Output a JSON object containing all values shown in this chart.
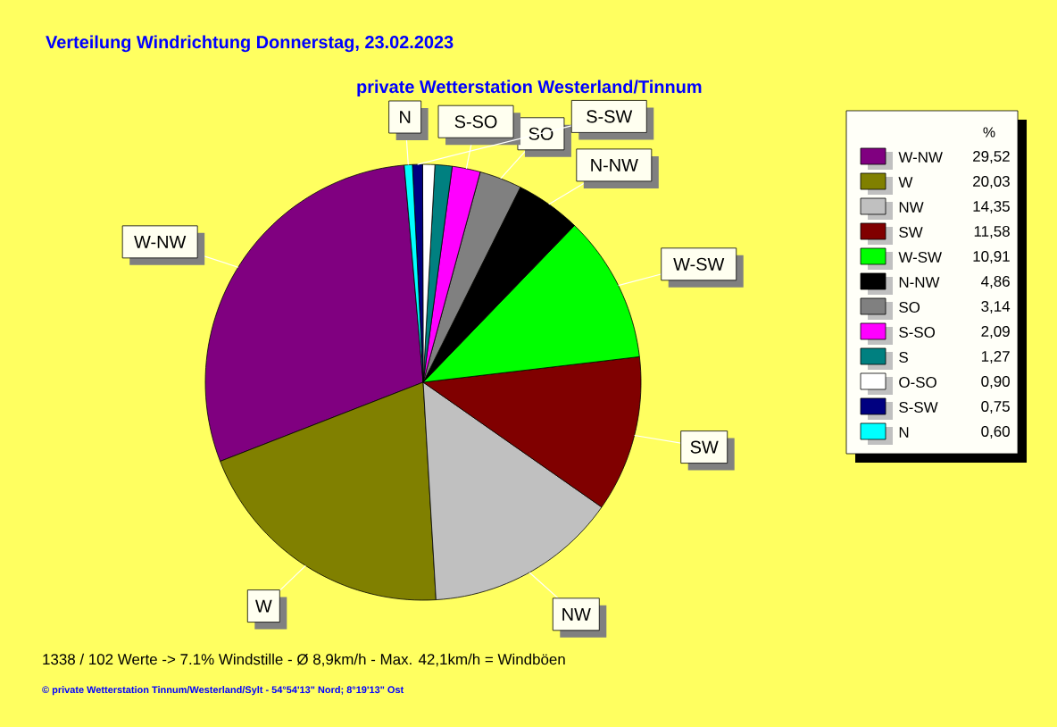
{
  "chart_data": {
    "type": "pie",
    "title": "Verteilung Windrichtung   Donnerstag, 23.02.2023",
    "subtitle": "private Wetterstation Westerland/Tinnum",
    "legend_title": "%",
    "legend": "right",
    "categories": [
      "W-NW",
      "W",
      "NW",
      "SW",
      "W-SW",
      "N-NW",
      "SO",
      "S-SO",
      "S",
      "O-SO",
      "S-SW",
      "N"
    ],
    "values": [
      29.52,
      20.03,
      14.35,
      11.58,
      10.91,
      4.86,
      3.14,
      2.09,
      1.27,
      0.9,
      0.75,
      0.6
    ],
    "value_labels": [
      "29,52",
      "20,03",
      "14,35",
      "11,58",
      "10,91",
      "4,86",
      "3,14",
      "2,09",
      "1,27",
      "0,90",
      "0,75",
      "0,60"
    ],
    "colors": [
      "#800080",
      "#808000",
      "#c0c0c0",
      "#800000",
      "#00ff00",
      "#000000",
      "#808080",
      "#ff00ff",
      "#008080",
      "#ffffff",
      "#000080",
      "#00ffff"
    ],
    "annotations": [
      {
        "text": "W-NW",
        "x": "W-NW"
      },
      {
        "text": "W",
        "x": "W"
      },
      {
        "text": "NW",
        "x": "NW"
      },
      {
        "text": "SW",
        "x": "SW"
      },
      {
        "text": "W-SW",
        "x": "W-SW"
      },
      {
        "text": "N-NW",
        "x": "N-NW"
      },
      {
        "text": "SO",
        "x": "SO"
      },
      {
        "text": "S-SO",
        "x": "S-SO"
      },
      {
        "text": "S-SW",
        "x": "S-SW"
      },
      {
        "text": "N",
        "x": "N"
      },
      "1338 / 102 Werte  -> 7.1% Windstille   -   Ø 8,9km/h  -  Max. 42,1km/h = Windböen",
      "© private Wetterstation Tinnum/Westerland/Sylt   -   54°54'13\" Nord; 8°19'13\" Ost"
    ]
  }
}
